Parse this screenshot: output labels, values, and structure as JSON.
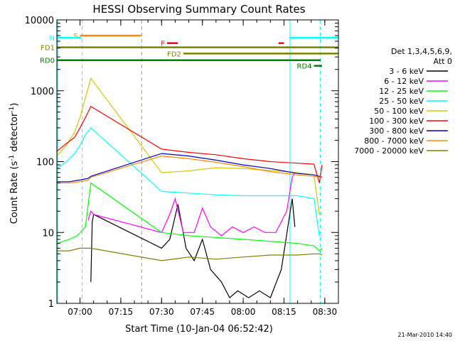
{
  "chart_data": {
    "type": "line",
    "title": "HESSI Observing Summary Count Rates",
    "xlabel": "Start Time (10-Jan-04 06:52:42)",
    "ylabel_main": "Count Rate (s",
    "ylabel_sup1": "-1",
    "ylabel_mid": " detector",
    "ylabel_sup2": "-1",
    "ylabel_end": ")",
    "yscale": "log",
    "ylim": [
      1,
      10000
    ],
    "xlim_minutes": [
      -8.5,
      95
    ],
    "x_ticks": [
      {
        "label": "07:00",
        "m": 0
      },
      {
        "label": "07:15",
        "m": 15
      },
      {
        "label": "07:30",
        "m": 30
      },
      {
        "label": "07:45",
        "m": 45
      },
      {
        "label": "08:00",
        "m": 60
      },
      {
        "label": "08:15",
        "m": 75
      },
      {
        "label": "08:30",
        "m": 90
      }
    ],
    "y_ticks": [
      {
        "label": "1",
        "v": 1
      },
      {
        "label": "10",
        "v": 10
      },
      {
        "label": "100",
        "v": 100
      },
      {
        "label": "1000",
        "v": 1000
      },
      {
        "label": "10000",
        "v": 10000
      }
    ],
    "legend": {
      "header1": "Det 1,3,4,5,6,9,",
      "header2": "Att 0",
      "placement": "right"
    },
    "series": [
      {
        "name": "3 - 6 keV",
        "color": "#000000",
        "points": [
          [
            4,
            2
          ],
          [
            4.5,
            14
          ],
          [
            5,
            18
          ],
          [
            30,
            6
          ],
          [
            33,
            8
          ],
          [
            36,
            25
          ],
          [
            39,
            6
          ],
          [
            42,
            4
          ],
          [
            45,
            8
          ],
          [
            48,
            3
          ],
          [
            52,
            2
          ],
          [
            55,
            1.2
          ],
          [
            58,
            1.5
          ],
          [
            62,
            1.2
          ],
          [
            66,
            1.5
          ],
          [
            70,
            1.2
          ],
          [
            74,
            3
          ],
          [
            78,
            30
          ],
          [
            79,
            12
          ]
        ]
      },
      {
        "name": "6 - 12 keV",
        "color": "#ff00ff",
        "points": [
          [
            3,
            15
          ],
          [
            4,
            20
          ],
          [
            5,
            18
          ],
          [
            30,
            10
          ],
          [
            33,
            18
          ],
          [
            35,
            30
          ],
          [
            38,
            10
          ],
          [
            42,
            10
          ],
          [
            45,
            22
          ],
          [
            48,
            12
          ],
          [
            52,
            9
          ],
          [
            56,
            12
          ],
          [
            60,
            10
          ],
          [
            64,
            12
          ],
          [
            68,
            10
          ],
          [
            72,
            10
          ],
          [
            76,
            20
          ],
          [
            78,
            60
          ],
          [
            79,
            70
          ]
        ]
      },
      {
        "name": "12 - 25 keV",
        "color": "#00ff00",
        "points": [
          [
            -8.5,
            7
          ],
          [
            -4,
            8
          ],
          [
            -1,
            9
          ],
          [
            2,
            12
          ],
          [
            4,
            50
          ],
          [
            30,
            10
          ],
          [
            40,
            9
          ],
          [
            50,
            8.5
          ],
          [
            60,
            8
          ],
          [
            70,
            7.5
          ],
          [
            80,
            7
          ],
          [
            86,
            6.5
          ],
          [
            88,
            5.5
          ],
          [
            89,
            6
          ]
        ]
      },
      {
        "name": "25 - 50 keV",
        "color": "#00ffff",
        "points": [
          [
            -8.5,
            80
          ],
          [
            -5,
            100
          ],
          [
            -2,
            130
          ],
          [
            0,
            170
          ],
          [
            2,
            240
          ],
          [
            4,
            300
          ],
          [
            30,
            38
          ],
          [
            40,
            36
          ],
          [
            50,
            34
          ],
          [
            60,
            33
          ],
          [
            70,
            33
          ],
          [
            80,
            33
          ],
          [
            86,
            30
          ],
          [
            88,
            9
          ],
          [
            89,
            9
          ]
        ]
      },
      {
        "name": "50 - 100 keV",
        "color": "#d4c800",
        "points": [
          [
            -8.5,
            120
          ],
          [
            -5,
            170
          ],
          [
            -2,
            260
          ],
          [
            0,
            420
          ],
          [
            2,
            800
          ],
          [
            4,
            1500
          ],
          [
            30,
            70
          ],
          [
            40,
            74
          ],
          [
            50,
            82
          ],
          [
            60,
            80
          ],
          [
            70,
            75
          ],
          [
            80,
            70
          ],
          [
            86,
            65
          ],
          [
            88,
            18
          ],
          [
            89,
            18
          ]
        ]
      },
      {
        "name": "100 - 300 keV",
        "color": "#ff0000",
        "points": [
          [
            -8.5,
            140
          ],
          [
            -5,
            180
          ],
          [
            -2,
            220
          ],
          [
            0,
            300
          ],
          [
            2,
            420
          ],
          [
            4,
            600
          ],
          [
            30,
            150
          ],
          [
            40,
            135
          ],
          [
            50,
            125
          ],
          [
            60,
            110
          ],
          [
            70,
            100
          ],
          [
            80,
            95
          ],
          [
            86,
            92
          ],
          [
            88,
            50
          ],
          [
            89,
            90
          ]
        ]
      },
      {
        "name": "300 - 800 keV",
        "color": "#0000cc",
        "points": [
          [
            -8.5,
            52
          ],
          [
            -4,
            52
          ],
          [
            0,
            55
          ],
          [
            3,
            58
          ],
          [
            4,
            62
          ],
          [
            30,
            130
          ],
          [
            40,
            120
          ],
          [
            50,
            105
          ],
          [
            60,
            90
          ],
          [
            70,
            80
          ],
          [
            80,
            68
          ],
          [
            86,
            65
          ],
          [
            88,
            62
          ],
          [
            89,
            60
          ]
        ]
      },
      {
        "name": "800 - 7000 keV",
        "color": "#ff8800",
        "points": [
          [
            -8.5,
            50
          ],
          [
            -4,
            50
          ],
          [
            0,
            52
          ],
          [
            3,
            55
          ],
          [
            4,
            60
          ],
          [
            30,
            120
          ],
          [
            40,
            110
          ],
          [
            50,
            98
          ],
          [
            60,
            85
          ],
          [
            70,
            72
          ],
          [
            80,
            65
          ],
          [
            86,
            62
          ],
          [
            88,
            60
          ],
          [
            89,
            62
          ]
        ]
      },
      {
        "name": "7000 - 20000 keV",
        "color": "#808000",
        "points": [
          [
            -8.5,
            5.5
          ],
          [
            -4,
            5.5
          ],
          [
            0,
            6
          ],
          [
            3,
            6
          ],
          [
            4,
            6
          ],
          [
            30,
            4
          ],
          [
            40,
            4.5
          ],
          [
            50,
            4.2
          ],
          [
            60,
            4.5
          ],
          [
            70,
            4.8
          ],
          [
            80,
            4.8
          ],
          [
            86,
            5
          ],
          [
            88,
            5
          ],
          [
            89,
            4.8
          ]
        ]
      }
    ],
    "flag_bars": [
      {
        "label": "S",
        "color": "#ff8800",
        "x0": 0,
        "x1": 22.5,
        "y": 6000
      },
      {
        "label": "N",
        "color": "#00ffff",
        "x0": -8.5,
        "x1": 0.5,
        "y": 5600
      },
      {
        "label": "",
        "color": "#00ffff",
        "x0": 77,
        "x1": 95,
        "y": 5600
      },
      {
        "label": "F",
        "color": "#ff0000",
        "x0": 32,
        "x1": 36,
        "y": 4700
      },
      {
        "label": "",
        "color": "#ff0000",
        "x0": 73,
        "x1": 75,
        "y": 4700
      },
      {
        "label": "FD1",
        "color": "#808000",
        "x0": -8.5,
        "x1": 95,
        "y": 4100
      },
      {
        "label": "FD2",
        "color": "#808000",
        "x0": 38,
        "x1": 95,
        "y": 3350
      },
      {
        "label": "RD0",
        "color": "#008000",
        "x0": -8.5,
        "x1": 88.5,
        "y": 2700
      },
      {
        "label": "RD4",
        "color": "#008000",
        "x0": 86,
        "x1": 89,
        "y": 2250
      }
    ],
    "vlines": [
      {
        "m": -8.2,
        "color": "#00ffff",
        "dash": false
      },
      {
        "m": 0.8,
        "color": "#00ffff",
        "dash": true
      },
      {
        "m": 22.7,
        "color": "#ff8800",
        "dash": true
      },
      {
        "m": 77.2,
        "color": "#00ffff",
        "dash": false
      },
      {
        "m": 88.3,
        "color": "#00ffff",
        "dash": true
      }
    ],
    "footer_date": "21-Mar-2010 14:40"
  }
}
